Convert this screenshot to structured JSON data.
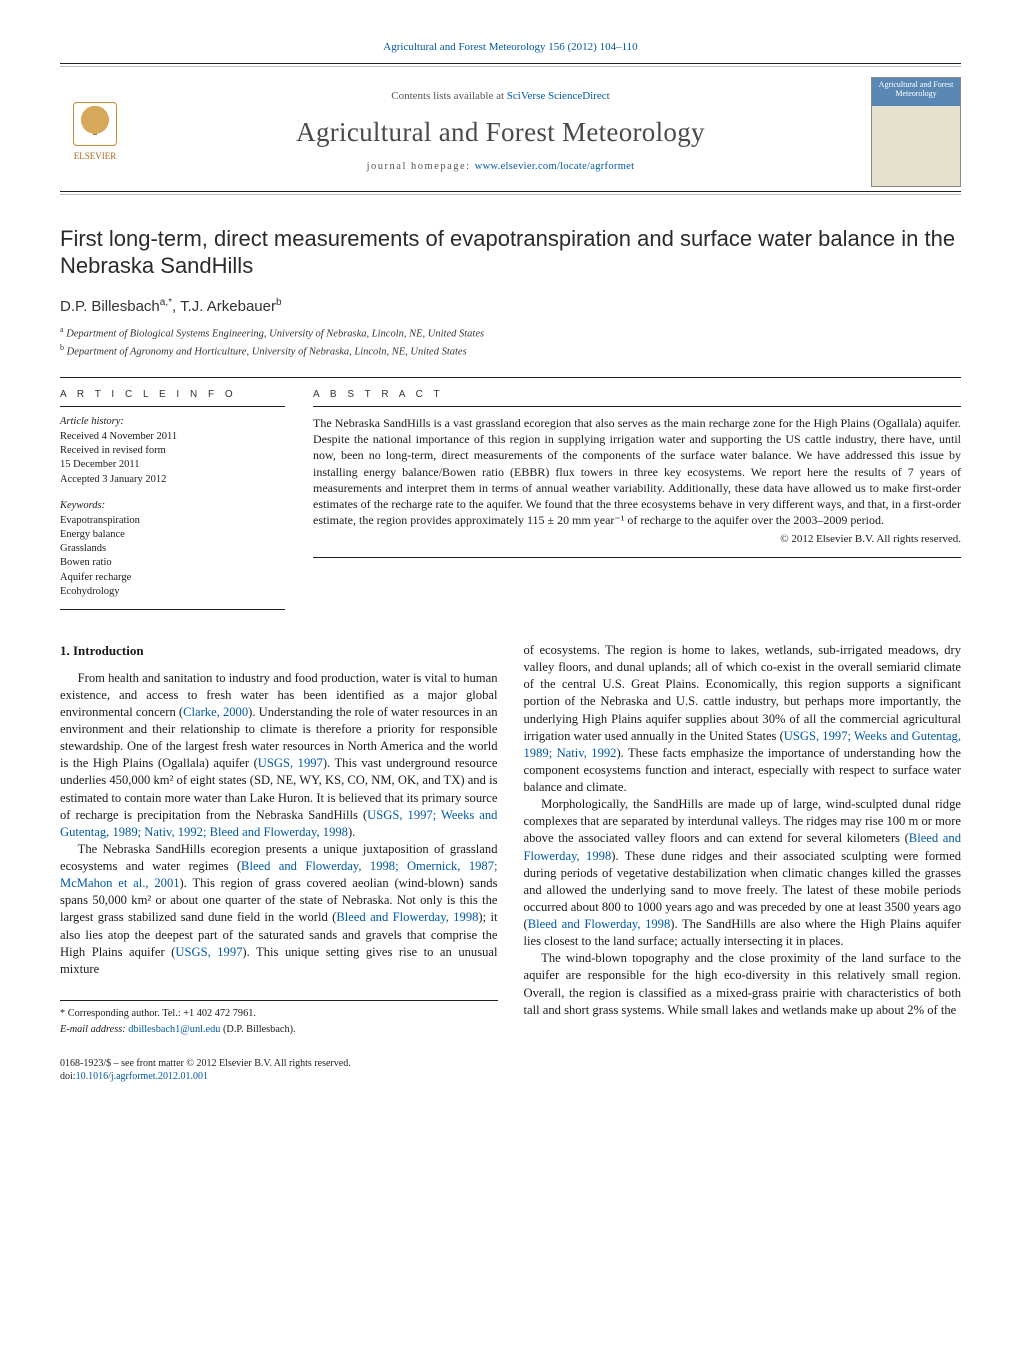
{
  "top": {
    "journal_ref": "Agricultural and Forest Meteorology 156 (2012) 104–110",
    "journal_ref_link_text": "Agricultural and Forest Meteorology 156 (2012) 104–110",
    "contents_prefix": "Contents lists available at ",
    "contents_link": "SciVerse ScienceDirect",
    "journal_name": "Agricultural and Forest Meteorology",
    "homepage_prefix": "journal homepage: ",
    "homepage_link": "www.elsevier.com/locate/agrformet",
    "publisher_name": "ELSEVIER",
    "cover_title": "Agricultural and Forest Meteorology"
  },
  "article": {
    "title": "First long-term, direct measurements of evapotranspiration and surface water balance in the Nebraska SandHills",
    "authors_html_parts": {
      "a1_name": "D.P. Billesbach",
      "a1_sup": "a,*",
      "sep": ", ",
      "a2_name": "T.J. Arkebauer",
      "a2_sup": "b"
    },
    "affiliations": {
      "a": "Department of Biological Systems Engineering, University of Nebraska, Lincoln, NE, United States",
      "b": "Department of Agronomy and Horticulture, University of Nebraska, Lincoln, NE, United States"
    }
  },
  "info": {
    "label": "A R T I C L E   I N F O",
    "history_head": "Article history:",
    "received": "Received 4 November 2011",
    "revised1": "Received in revised form",
    "revised2": "15 December 2011",
    "accepted": "Accepted 3 January 2012",
    "kw_head": "Keywords:",
    "keywords": [
      "Evapotranspiration",
      "Energy balance",
      "Grasslands",
      "Bowen ratio",
      "Aquifer recharge",
      "Ecohydrology"
    ]
  },
  "abstract": {
    "label": "A B S T R A C T",
    "text": "The Nebraska SandHills is a vast grassland ecoregion that also serves as the main recharge zone for the High Plains (Ogallala) aquifer. Despite the national importance of this region in supplying irrigation water and supporting the US cattle industry, there have, until now, been no long-term, direct measurements of the components of the surface water balance. We have addressed this issue by installing energy balance/Bowen ratio (EBBR) flux towers in three key ecosystems. We report here the results of 7 years of measurements and interpret them in terms of annual weather variability. Additionally, these data have allowed us to make first-order estimates of the recharge rate to the aquifer. We found that the three ecosystems behave in very different ways, and that, in a first-order estimate, the region provides approximately 115 ± 20 mm year⁻¹ of recharge to the aquifer over the 2003–2009 period.",
    "copyright": "© 2012 Elsevier B.V. All rights reserved."
  },
  "body": {
    "h_intro": "1.  Introduction",
    "p1a": "From health and sanitation to industry and food production, water is vital to human existence, and access to fresh water has been identified as a major global environmental concern (",
    "p1_l1": "Clarke, 2000",
    "p1b": "). Understanding the role of water resources in an environment and their relationship to climate is therefore a priority for responsible stewardship. One of the largest fresh water resources in North America and the world is the High Plains (Ogallala) aquifer (",
    "p1_l2": "USGS, 1997",
    "p1c": "). This vast underground resource underlies 450,000 km² of eight states (SD, NE, WY, KS, CO, NM, OK, and TX) and is estimated to contain more water than Lake Huron. It is believed that its primary source of recharge is precipitation from the Nebraska SandHills (",
    "p1_l3": "USGS, 1997; Weeks and Gutentag, 1989; Nativ, 1992; Bleed and Flowerday, 1998",
    "p1d": ").",
    "p2a": "The Nebraska SandHills ecoregion presents a unique juxtaposition of grassland ecosystems and water regimes (",
    "p2_l1": "Bleed and Flowerday, 1998; Omernick, 1987; McMahon et al., 2001",
    "p2b": "). This region of grass covered aeolian (wind-blown) sands spans 50,000 km² or about one quarter of the state of Nebraska. Not only is this the largest grass stabilized sand dune field in the world (",
    "p2_l2": "Bleed and Flowerday, 1998",
    "p2c": "); it also lies atop the deepest part of the saturated sands and gravels that comprise the High Plains aquifer (",
    "p2_l3": "USGS, 1997",
    "p2d": "). This unique setting gives rise to an unusual mixture",
    "p3a": "of ecosystems. The region is home to lakes, wetlands, sub-irrigated meadows, dry valley floors, and dunal uplands; all of which co-exist in the overall semiarid climate of the central U.S. Great Plains. Economically, this region supports a significant portion of the Nebraska and U.S. cattle industry, but perhaps more importantly, the underlying High Plains aquifer supplies about 30% of all the commercial agricultural irrigation water used annually in the United States (",
    "p3_l1": "USGS, 1997; Weeks and Gutentag, 1989; Nativ, 1992",
    "p3b": "). These facts emphasize the importance of understanding how the component ecosystems function and interact, especially with respect to surface water balance and climate.",
    "p4a": "Morphologically, the SandHills are made up of large, wind-sculpted dunal ridge complexes that are separated by interdunal valleys. The ridges may rise 100 m or more above the associated valley floors and can extend for several kilometers (",
    "p4_l1": "Bleed and Flowerday, 1998",
    "p4b": "). These dune ridges and their associated sculpting were formed during periods of vegetative destabilization when climatic changes killed the grasses and allowed the underlying sand to move freely. The latest of these mobile periods occurred about 800 to 1000 years ago and was preceded by one at least 3500 years ago (",
    "p4_l2": "Bleed and Flowerday, 1998",
    "p4c": "). The SandHills are also where the High Plains aquifer lies closest to the land surface; actually intersecting it in places.",
    "p5": "The wind-blown topography and the close proximity of the land surface to the aquifer are responsible for the high eco-diversity in this relatively small region. Overall, the region is classified as a mixed-grass prairie with characteristics of both tall and short grass systems. While small lakes and wetlands make up about 2% of the"
  },
  "footnote": {
    "corr": "* Corresponding author. Tel.: +1 402 472 7961.",
    "email_label": "E-mail address: ",
    "email": "dbillesbach1@unl.edu",
    "email_person": " (D.P. Billesbach)."
  },
  "bottom": {
    "line1": "0168-1923/$ – see front matter © 2012 Elsevier B.V. All rights reserved.",
    "doi_prefix": "doi:",
    "doi": "10.1016/j.agrformet.2012.01.001"
  },
  "colors": {
    "link": "#0058a5",
    "text": "#1a1a1a",
    "rule": "#222222"
  }
}
